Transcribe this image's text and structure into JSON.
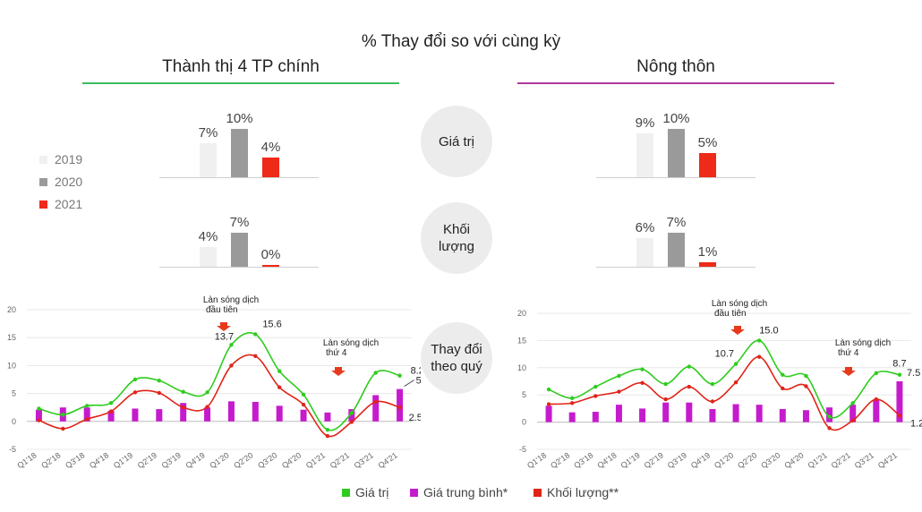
{
  "title": "% Thay đổi so với cùng kỳ",
  "sections": {
    "urban": {
      "title": "Thành thị 4 TP chính",
      "color": "#3dbd5d"
    },
    "rural": {
      "title": "Nông thôn",
      "color": "#b0389a"
    }
  },
  "metrics": {
    "value": "Giá trị",
    "volume_l1": "Khối",
    "volume_l2": "lượng",
    "quarterly_l1": "Thay đổi",
    "quarterly_l2": "theo quý"
  },
  "year_legend": [
    {
      "label": "2019",
      "color": "#f0f0f0"
    },
    {
      "label": "2020",
      "color": "#9a9a9a"
    },
    {
      "label": "2021",
      "color": "#ee2a18"
    }
  ],
  "bar_charts": {
    "urban_value": {
      "values": [
        7,
        10,
        4
      ],
      "labels": [
        "7%",
        "10%",
        "4%"
      ]
    },
    "urban_volume": {
      "values": [
        4,
        7,
        0
      ],
      "labels": [
        "4%",
        "7%",
        "0%"
      ]
    },
    "rural_value": {
      "values": [
        9,
        10,
        5
      ],
      "labels": [
        "9%",
        "10%",
        "5%"
      ]
    },
    "rural_volume": {
      "values": [
        6,
        7,
        1
      ],
      "labels": [
        "6%",
        "7%",
        "1%"
      ]
    }
  },
  "chart_data": [
    {
      "type": "line",
      "categories": [
        "Q1'18",
        "Q2'18",
        "Q3'18",
        "Q4'18",
        "Q1'19",
        "Q2'19",
        "Q3'19",
        "Q4'19",
        "Q1'20",
        "Q2'20",
        "Q3'20",
        "Q4'20",
        "Q1'21",
        "Q2'21",
        "Q3'21",
        "Q4'21"
      ],
      "ylim": [
        -5,
        20
      ],
      "yticks": [
        20,
        15,
        10,
        5,
        0,
        -5
      ],
      "series": [
        {
          "name": "Giá trị",
          "type": "line",
          "color": "#2ecc1e",
          "values": [
            2.3,
            1.2,
            2.8,
            3.3,
            7.5,
            7.3,
            5.3,
            5.2,
            13.7,
            15.6,
            9.0,
            4.8,
            -1.5,
            1.5,
            8.7,
            8.2
          ]
        },
        {
          "name": "Giá trung bình*",
          "type": "bar",
          "color": "#c61bcd",
          "values": [
            2.1,
            2.5,
            2.5,
            1.9,
            2.3,
            2.2,
            3.3,
            2.5,
            3.6,
            3.5,
            2.8,
            2.1,
            1.6,
            2.2,
            4.7,
            5.8
          ]
        },
        {
          "name": "Khối lượng**",
          "type": "line",
          "color": "#e02418",
          "values": [
            0.2,
            -1.3,
            0.4,
            1.8,
            5.2,
            5.1,
            2.5,
            2.6,
            10.0,
            11.7,
            6.1,
            3.0,
            -2.6,
            -0.1,
            3.5,
            2.5
          ]
        }
      ],
      "point_labels": [
        "13.7",
        "15.6",
        "8.2",
        "5.8",
        "2.5"
      ],
      "annotations": [
        {
          "line1": "Làn sóng dịch",
          "line2": "đầu tiên"
        },
        {
          "line1": "Làn sóng dịch",
          "line2": "thứ 4"
        }
      ]
    },
    {
      "type": "line",
      "categories": [
        "Q1'18",
        "Q2'18",
        "Q3'18",
        "Q4'18",
        "Q1'19",
        "Q2'19",
        "Q3'19",
        "Q4'19",
        "Q1'20",
        "Q2'20",
        "Q3'20",
        "Q4'20",
        "Q1'21",
        "Q2'21",
        "Q3'21",
        "Q4'21"
      ],
      "ylim": [
        -5,
        20
      ],
      "yticks": [
        20,
        15,
        10,
        5,
        0,
        -5
      ],
      "series": [
        {
          "name": "Giá trị",
          "type": "line",
          "color": "#2ecc1e",
          "values": [
            6.0,
            4.4,
            6.5,
            8.5,
            9.7,
            7.0,
            10.2,
            7.0,
            10.7,
            15.0,
            8.7,
            8.5,
            1.0,
            3.5,
            9.0,
            8.7
          ]
        },
        {
          "name": "Giá trung bình*",
          "type": "bar",
          "color": "#c61bcd",
          "values": [
            3.0,
            1.8,
            1.9,
            3.2,
            2.5,
            3.6,
            3.6,
            2.4,
            3.3,
            3.2,
            2.4,
            2.2,
            2.7,
            3.2,
            4.2,
            7.5
          ]
        },
        {
          "name": "Khối lượng**",
          "type": "line",
          "color": "#e02418",
          "values": [
            3.3,
            3.5,
            4.8,
            5.6,
            7.2,
            4.2,
            6.5,
            3.8,
            7.3,
            12.0,
            6.2,
            6.6,
            -1.1,
            0.3,
            4.2,
            1.2
          ]
        }
      ],
      "point_labels": [
        "10.7",
        "15.0",
        "8.7",
        "7.5",
        "1.2"
      ],
      "annotations": [
        {
          "line1": "Làn sóng dịch",
          "line2": "đầu tiên"
        },
        {
          "line1": "Làn sóng dịch",
          "line2": "thứ 4"
        }
      ]
    }
  ],
  "bottom_legend": [
    {
      "label": "Giá trị",
      "color": "#2ecc1e"
    },
    {
      "label": "Giá trung bình*",
      "color": "#c61bcd"
    },
    {
      "label": "Khối lượng**",
      "color": "#e02418"
    }
  ]
}
